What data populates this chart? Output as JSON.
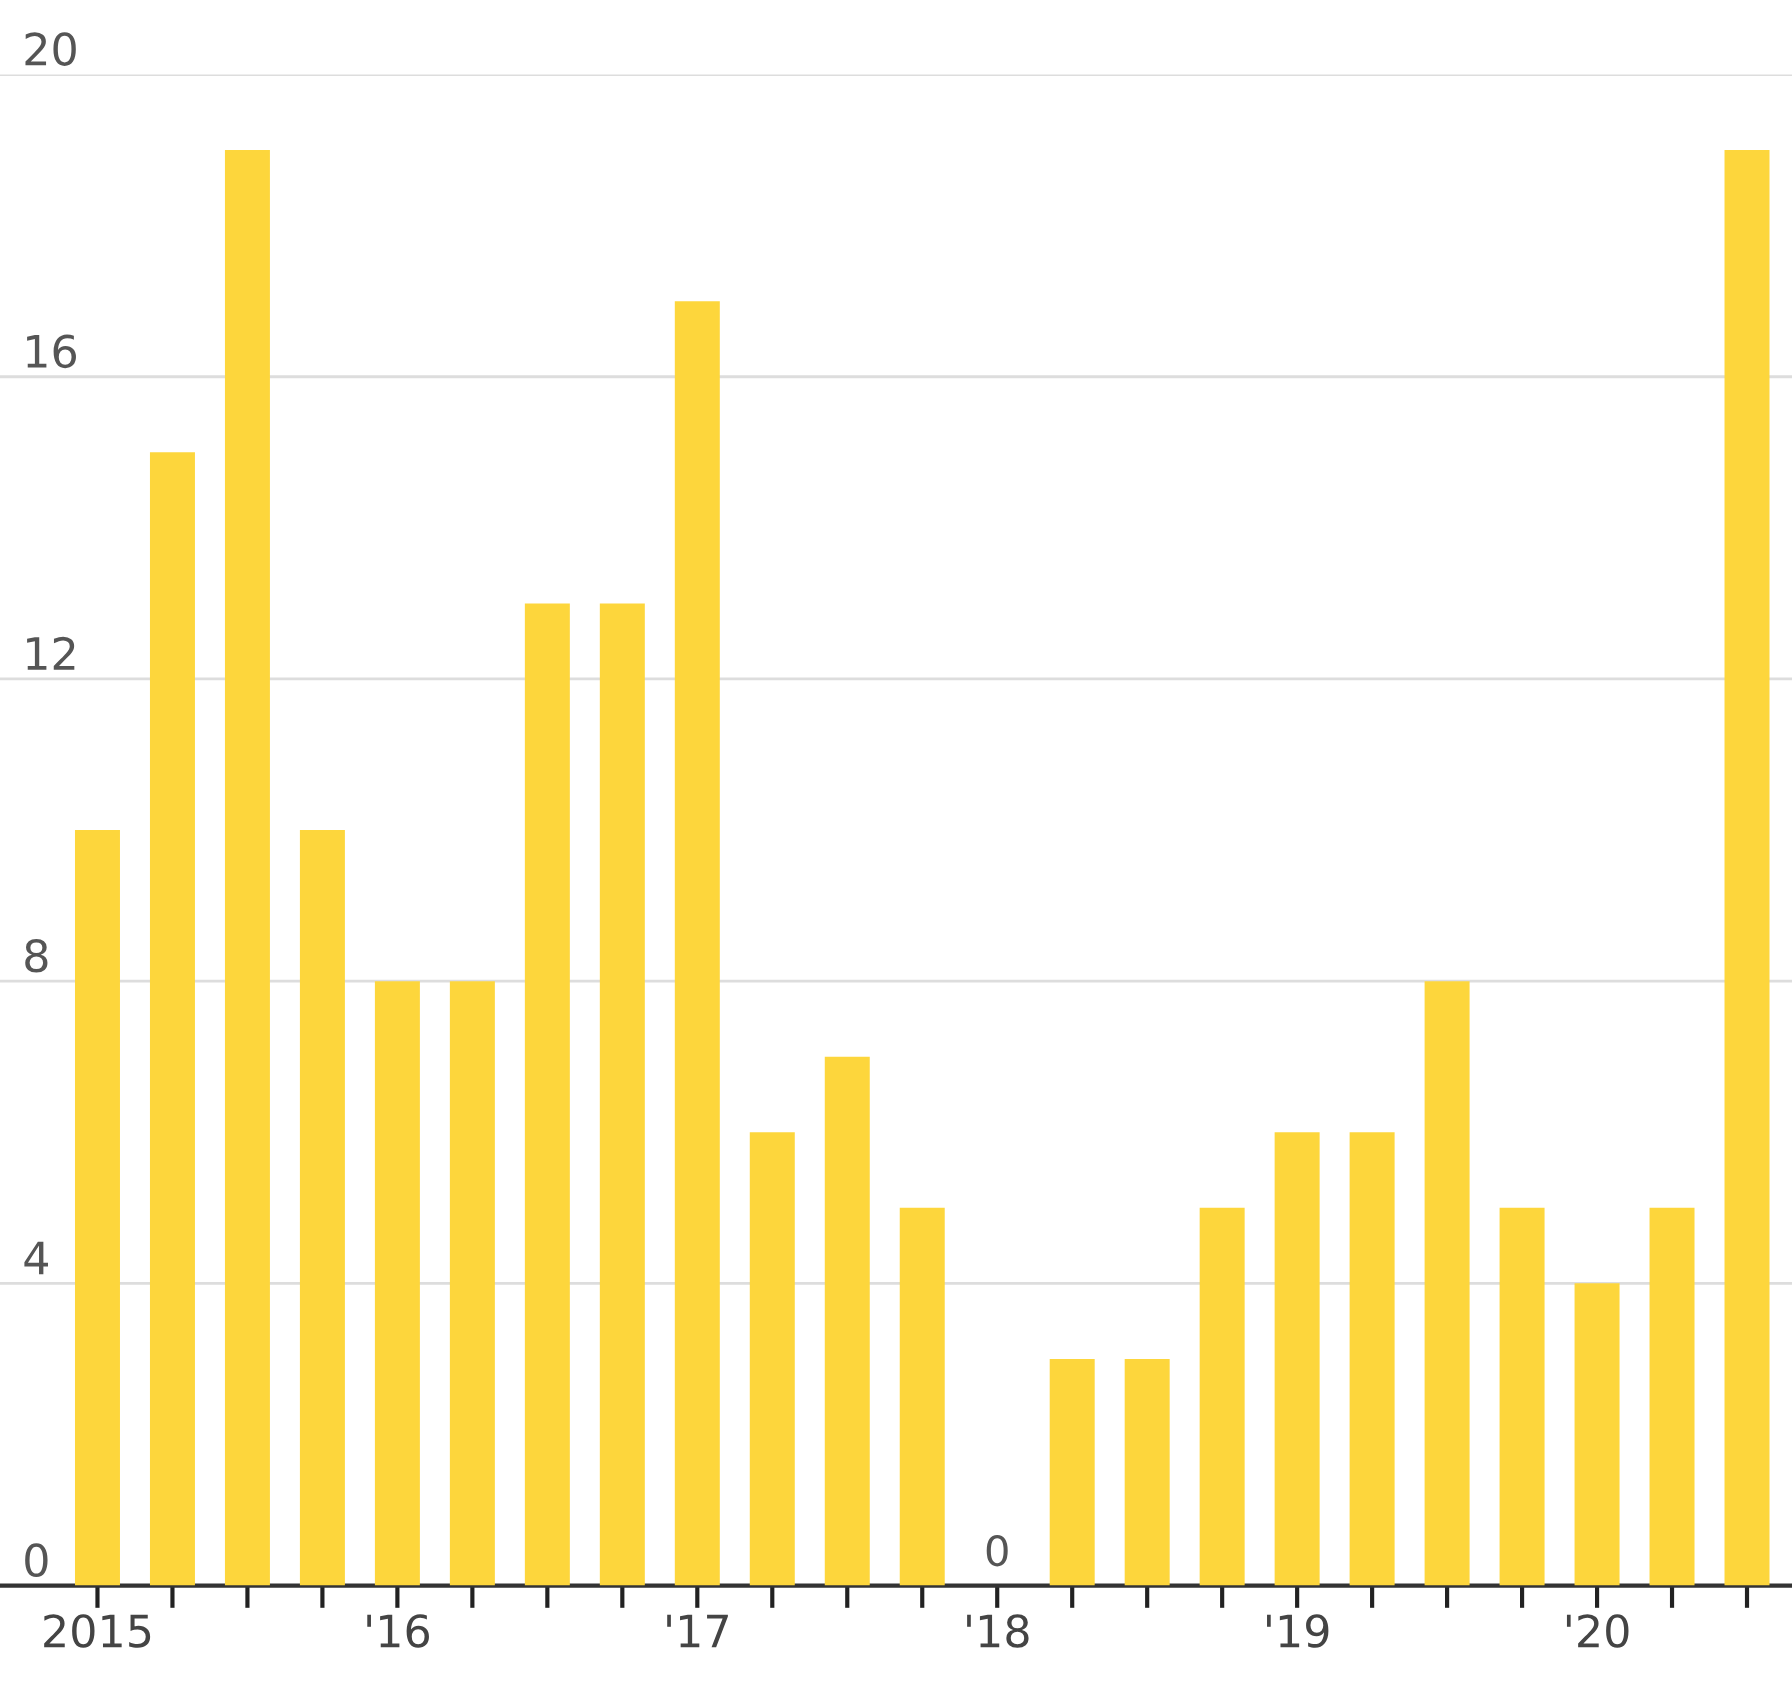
{
  "chart_data": {
    "type": "bar",
    "categories": [
      "2015",
      null,
      null,
      null,
      "'16",
      null,
      null,
      null,
      "'17",
      null,
      null,
      null,
      "'18",
      null,
      null,
      null,
      "'19",
      null,
      null,
      null,
      "'20",
      null,
      null
    ],
    "values": [
      10,
      15,
      19,
      10,
      8,
      8,
      13,
      13,
      17,
      6,
      7,
      5,
      0,
      3,
      3,
      5,
      6,
      6,
      8,
      5,
      4,
      5,
      19
    ],
    "value_labels": [
      null,
      null,
      null,
      null,
      null,
      null,
      null,
      null,
      null,
      null,
      null,
      null,
      "0",
      null,
      null,
      null,
      null,
      null,
      null,
      null,
      null,
      null,
      null
    ],
    "color": "#fdd63c",
    "ylim": [
      0,
      20
    ],
    "yticks": [
      0,
      4,
      8,
      12,
      16,
      20
    ],
    "grid": "y",
    "legend": false
  }
}
